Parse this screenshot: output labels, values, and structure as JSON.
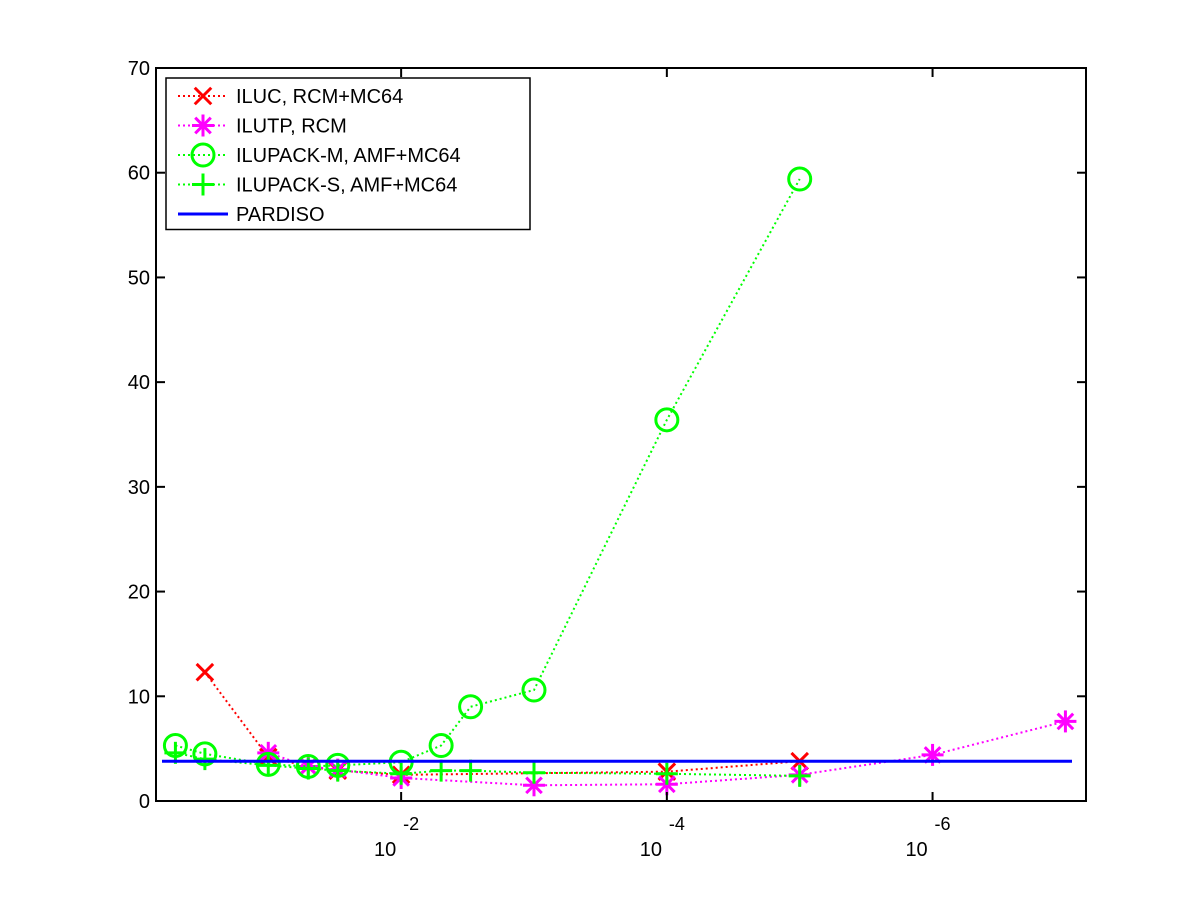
{
  "chart_data": {
    "type": "line",
    "x_scale": "log10, reversed (decreasing to the right)",
    "x_ticks": [
      {
        "value": 0.01,
        "base": "10",
        "exponent": "-2"
      },
      {
        "value": 0.0001,
        "base": "10",
        "exponent": "-4"
      },
      {
        "value": 1e-06,
        "base": "10",
        "exponent": "-6"
      }
    ],
    "xlim": [
      0.7,
      7e-08
    ],
    "ylim": [
      0,
      70
    ],
    "y_ticks": [
      0,
      10,
      20,
      30,
      40,
      50,
      60,
      70
    ],
    "grid": false,
    "legend_position": "top-left",
    "series": [
      {
        "name": "ILUC, RCM+MC64",
        "color": "#ff0000",
        "marker": "x",
        "line_style": "dotted",
        "x": [
          0.3,
          0.1,
          0.05,
          0.03,
          0.01,
          0.0001,
          1e-05
        ],
        "y": [
          12.3,
          4.2,
          3.3,
          2.9,
          2.5,
          2.8,
          3.8
        ]
      },
      {
        "name": "ILUTP, RCM",
        "color": "#ff00ff",
        "marker": "asterisk",
        "line_style": "dotted",
        "x": [
          0.1,
          0.05,
          0.03,
          0.01,
          0.001,
          0.0001,
          1e-05,
          1e-06,
          1e-07
        ],
        "y": [
          4.6,
          3.3,
          3.0,
          2.2,
          1.5,
          1.6,
          2.5,
          4.4,
          7.6
        ]
      },
      {
        "name": "ILUPACK-M, AMF+MC64",
        "color": "#00ff00",
        "marker": "circle",
        "line_style": "dotted",
        "x": [
          0.5,
          0.3,
          0.1,
          0.05,
          0.03,
          0.01,
          0.005,
          0.003,
          0.001,
          0.0001,
          1e-05
        ],
        "y": [
          5.3,
          4.5,
          3.5,
          3.3,
          3.4,
          3.7,
          5.3,
          9.0,
          10.6,
          36.4,
          59.4
        ]
      },
      {
        "name": "ILUPACK-S, AMF+MC64",
        "color": "#00ff00",
        "marker": "plus",
        "line_style": "dotted",
        "x": [
          0.5,
          0.3,
          0.1,
          0.05,
          0.03,
          0.01,
          0.005,
          0.003,
          0.001,
          0.0001,
          1e-05
        ],
        "y": [
          4.6,
          4.0,
          3.4,
          3.1,
          2.9,
          2.6,
          2.9,
          2.9,
          2.7,
          2.6,
          2.4
        ]
      },
      {
        "name": "PARDISO",
        "color": "#0000ff",
        "marker": "none",
        "line_style": "solid",
        "constant": 3.8
      }
    ]
  }
}
